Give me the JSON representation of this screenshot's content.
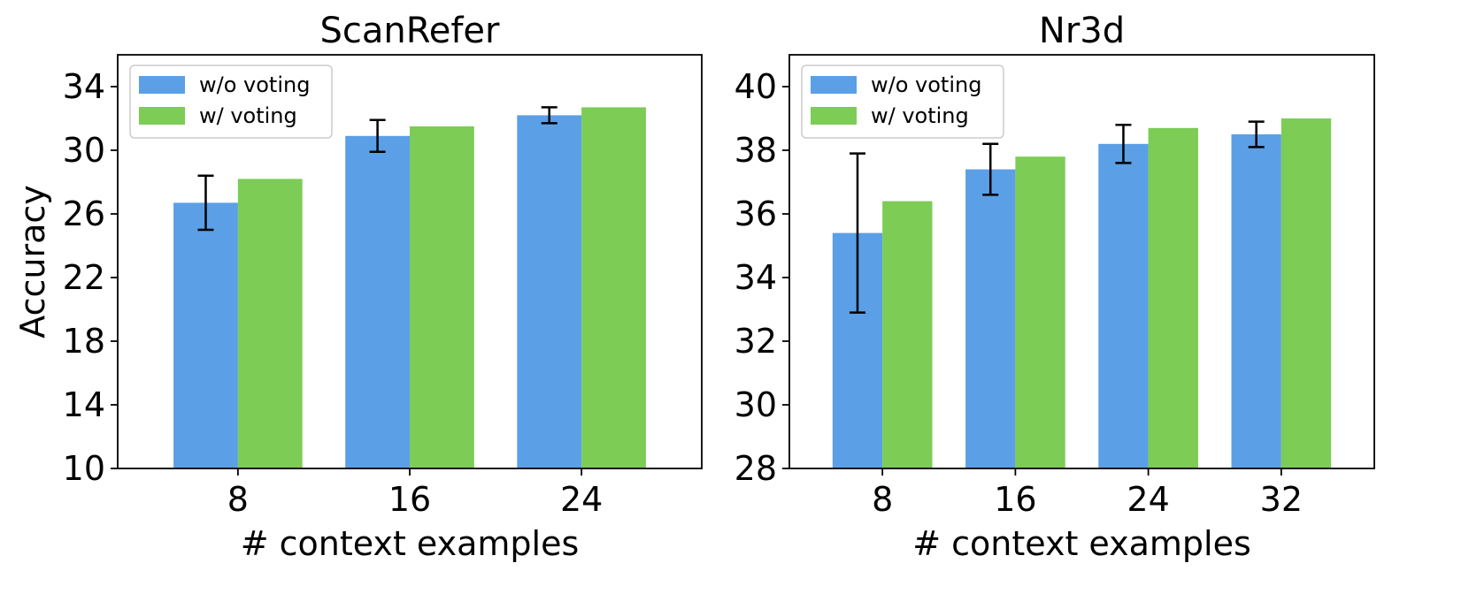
{
  "colors": {
    "without_voting": "#5b9fe6",
    "with_voting": "#7ccc55",
    "error_bar": "#000000"
  },
  "chart_data": [
    {
      "type": "bar",
      "title": "ScanRefer",
      "xlabel": "# context examples",
      "ylabel": "Accuracy",
      "categories": [
        "8",
        "16",
        "24"
      ],
      "ylim": [
        10,
        36
      ],
      "yticks": [
        10,
        14,
        18,
        22,
        26,
        30,
        34
      ],
      "legend": {
        "placement": "top-left"
      },
      "series": [
        {
          "name": "w/o voting",
          "values": [
            26.7,
            30.9,
            32.2
          ],
          "error": [
            1.7,
            1.0,
            0.5
          ]
        },
        {
          "name": "w/ voting",
          "values": [
            28.2,
            31.5,
            32.7
          ]
        }
      ]
    },
    {
      "type": "bar",
      "title": "Nr3d",
      "xlabel": "# context examples",
      "ylabel": "",
      "categories": [
        "8",
        "16",
        "24",
        "32"
      ],
      "ylim": [
        28,
        41
      ],
      "yticks": [
        28,
        30,
        32,
        34,
        36,
        38,
        40
      ],
      "legend": {
        "placement": "top-left"
      },
      "series": [
        {
          "name": "w/o voting",
          "values": [
            35.4,
            37.4,
            38.2,
            38.5
          ],
          "error": [
            2.5,
            0.8,
            0.6,
            0.4
          ]
        },
        {
          "name": "w/ voting",
          "values": [
            36.4,
            37.8,
            38.7,
            39.0
          ]
        }
      ]
    }
  ]
}
